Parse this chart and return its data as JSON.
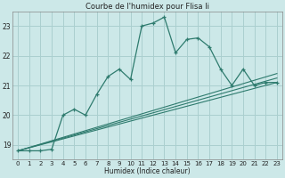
{
  "title": "Courbe de l'humidex pour Flisa Ii",
  "xlabel": "Humidex (Indice chaleur)",
  "bg_color": "#cce8e8",
  "grid_color": "#aacfcf",
  "line_color": "#2e7b6e",
  "xlim": [
    -0.5,
    23.5
  ],
  "ylim": [
    18.5,
    23.5
  ],
  "yticks": [
    19,
    20,
    21,
    22,
    23
  ],
  "xticks": [
    0,
    1,
    2,
    3,
    4,
    5,
    6,
    7,
    8,
    9,
    10,
    11,
    12,
    13,
    14,
    15,
    16,
    17,
    18,
    19,
    20,
    21,
    22,
    23
  ],
  "main_x": [
    0,
    1,
    2,
    3,
    4,
    5,
    6,
    7,
    8,
    9,
    10,
    11,
    12,
    13,
    14,
    15,
    16,
    17,
    18,
    19,
    20,
    21,
    22,
    23
  ],
  "main_y": [
    18.8,
    18.8,
    18.8,
    18.85,
    20.0,
    20.2,
    20.0,
    20.7,
    21.3,
    21.55,
    21.2,
    23.0,
    23.1,
    23.3,
    22.1,
    22.55,
    22.6,
    22.3,
    21.55,
    21.0,
    21.55,
    21.0,
    21.1,
    21.1
  ],
  "line2": [
    [
      0,
      18.8
    ],
    [
      23,
      21.4
    ]
  ],
  "line3": [
    [
      0,
      18.8
    ],
    [
      23,
      21.1
    ]
  ],
  "line4": [
    [
      0,
      18.8
    ],
    [
      23,
      21.25
    ]
  ]
}
